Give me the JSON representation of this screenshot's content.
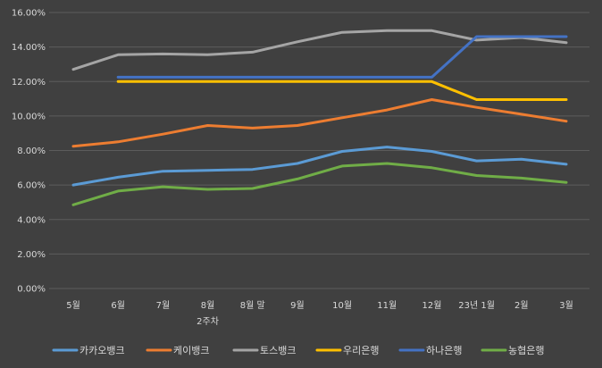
{
  "chart_data": {
    "type": "line",
    "title": "",
    "xlabel": "",
    "ylabel": "",
    "categories": [
      "5월",
      "6월",
      "7월",
      "8월\n2주차",
      "8월 말",
      "9월",
      "10월",
      "11월",
      "12월",
      "23년 1월",
      "2월",
      "3월"
    ],
    "ylim": [
      0,
      16
    ],
    "yticks": [
      "0.00%",
      "2.00%",
      "4.00%",
      "6.00%",
      "8.00%",
      "10.00%",
      "12.00%",
      "14.00%",
      "16.00%"
    ],
    "grid": true,
    "legend_position": "bottom",
    "series": [
      {
        "name": "카카오뱅크",
        "color": "#5b9bd5",
        "values": [
          6.0,
          6.45,
          6.8,
          6.85,
          6.9,
          7.25,
          7.95,
          8.2,
          7.95,
          7.4,
          7.5,
          7.2
        ]
      },
      {
        "name": "케이뱅크",
        "color": "#ed7d31",
        "values": [
          8.25,
          8.5,
          8.95,
          9.45,
          9.3,
          9.45,
          9.9,
          10.35,
          10.95,
          10.5,
          10.1,
          9.7
        ]
      },
      {
        "name": "토스뱅크",
        "color": "#a5a5a5",
        "values": [
          12.7,
          13.55,
          13.6,
          13.55,
          13.7,
          14.3,
          14.85,
          14.95,
          14.95,
          14.4,
          14.55,
          14.25
        ]
      },
      {
        "name": "우리은행",
        "color": "#ffc000",
        "values": [
          null,
          12.0,
          12.0,
          12.0,
          12.0,
          12.0,
          12.0,
          12.0,
          12.0,
          10.95,
          10.95,
          10.95
        ]
      },
      {
        "name": "하나은행",
        "color": "#4472c4",
        "values": [
          null,
          12.25,
          12.25,
          12.25,
          12.25,
          12.25,
          12.25,
          12.25,
          12.25,
          14.6,
          14.6,
          14.6
        ]
      },
      {
        "name": "농협은행",
        "color": "#70ad47",
        "values": [
          4.85,
          5.65,
          5.9,
          5.75,
          5.8,
          6.35,
          7.1,
          7.25,
          7.0,
          6.55,
          6.4,
          6.15
        ]
      }
    ]
  }
}
